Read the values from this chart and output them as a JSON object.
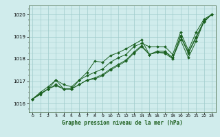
{
  "title": "Graphe pression niveau de la mer (hPa)",
  "bg_color": "#d0ecec",
  "grid_color": "#a0cccc",
  "line_color": "#1a6020",
  "xlim": [
    -0.5,
    23.5
  ],
  "ylim": [
    1015.6,
    1020.4
  ],
  "xticks": [
    0,
    1,
    2,
    3,
    4,
    5,
    6,
    7,
    8,
    9,
    10,
    11,
    12,
    13,
    14,
    15,
    16,
    17,
    18,
    19,
    20,
    21,
    22,
    23
  ],
  "yticks": [
    1016,
    1017,
    1018,
    1019,
    1020
  ],
  "series": [
    {
      "x": [
        0,
        1,
        2,
        3,
        4,
        5,
        6,
        7,
        8,
        9,
        10,
        11,
        12,
        13,
        14,
        15,
        16,
        17,
        18,
        19,
        20,
        21,
        22,
        23
      ],
      "y": [
        1016.2,
        1016.45,
        1016.65,
        1016.85,
        1016.65,
        1016.65,
        1016.85,
        1017.05,
        1017.15,
        1017.3,
        1017.55,
        1017.75,
        1017.95,
        1018.3,
        1018.6,
        1018.2,
        1018.3,
        1018.3,
        1018.05,
        1019.05,
        1018.3,
        1019.0,
        1019.7,
        1020.0
      ]
    },
    {
      "x": [
        0,
        1,
        2,
        3,
        4,
        5,
        6,
        7,
        8,
        9,
        10,
        11,
        12,
        13,
        14,
        15,
        16,
        17,
        18,
        19,
        20,
        21,
        22,
        23
      ],
      "y": [
        1016.2,
        1016.5,
        1016.75,
        1017.05,
        1016.85,
        1016.75,
        1017.05,
        1017.25,
        1017.4,
        1017.55,
        1017.85,
        1018.05,
        1018.2,
        1018.55,
        1018.7,
        1018.55,
        1018.55,
        1018.55,
        1018.2,
        1019.2,
        1018.4,
        1019.2,
        1019.78,
        1020.0
      ]
    },
    {
      "x": [
        0,
        2,
        3,
        4,
        5,
        6,
        7,
        8,
        9,
        10,
        11,
        12,
        13,
        14,
        15,
        16,
        17,
        18,
        19,
        20,
        21,
        22,
        23
      ],
      "y": [
        1016.2,
        1016.65,
        1017.05,
        1016.65,
        1016.65,
        1017.05,
        1017.4,
        1017.9,
        1017.85,
        1018.15,
        1018.28,
        1018.45,
        1018.65,
        1018.85,
        1018.2,
        1018.35,
        1018.35,
        1018.05,
        1018.85,
        1018.05,
        1018.8,
        1019.68,
        1020.0
      ]
    },
    {
      "x": [
        0,
        1,
        2,
        3,
        4,
        5,
        6,
        7,
        8,
        9,
        10,
        11,
        12,
        13,
        14,
        15,
        16,
        17,
        18,
        19,
        20,
        21,
        22,
        23
      ],
      "y": [
        1016.2,
        1016.4,
        1016.65,
        1016.8,
        1016.65,
        1016.65,
        1016.85,
        1017.05,
        1017.1,
        1017.25,
        1017.5,
        1017.7,
        1017.9,
        1018.25,
        1018.55,
        1018.2,
        1018.3,
        1018.25,
        1018.0,
        1019.0,
        1018.25,
        1018.95,
        1019.65,
        1020.0
      ]
    }
  ]
}
